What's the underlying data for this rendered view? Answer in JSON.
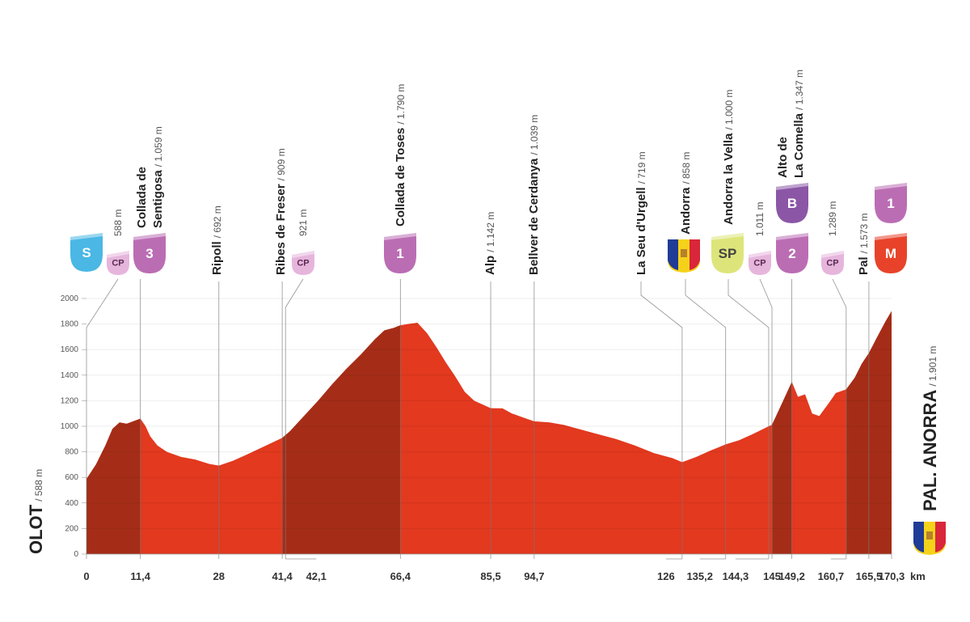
{
  "chart_data": {
    "type": "area",
    "x": [
      0,
      2,
      4,
      5.5,
      7,
      8.5,
      10,
      11.4,
      12.5,
      13.5,
      15,
      17,
      20,
      23,
      26,
      28,
      31,
      34,
      38,
      41.4,
      43,
      46,
      49,
      52,
      55,
      58,
      61,
      63,
      65,
      66.4,
      68,
      70,
      72,
      74,
      76,
      78,
      80,
      82,
      85.5,
      88,
      90,
      93,
      94.7,
      98,
      101,
      105,
      108,
      112,
      116,
      120,
      124,
      126,
      129,
      132,
      135.2,
      138,
      141,
      144.3,
      145,
      147,
      149.2,
      150.5,
      152,
      153.5,
      155,
      157,
      158.5,
      160.7,
      162.5,
      164,
      165.5,
      167,
      169,
      170.3
    ],
    "values": [
      588,
      700,
      850,
      980,
      1030,
      1020,
      1040,
      1059,
      1000,
      920,
      850,
      800,
      760,
      740,
      705,
      692,
      730,
      780,
      850,
      909,
      960,
      1080,
      1200,
      1330,
      1450,
      1560,
      1680,
      1750,
      1770,
      1790,
      1800,
      1810,
      1730,
      1620,
      1500,
      1390,
      1270,
      1200,
      1142,
      1140,
      1100,
      1060,
      1039,
      1030,
      1010,
      970,
      940,
      900,
      850,
      790,
      750,
      719,
      760,
      810,
      858,
      890,
      940,
      1000,
      1011,
      1170,
      1347,
      1230,
      1250,
      1100,
      1080,
      1180,
      1260,
      1289,
      1380,
      1490,
      1573,
      1680,
      1820,
      1901
    ],
    "color": "#e2391f",
    "climb_color": "#a52d17",
    "climbs": [
      {
        "start": 0,
        "end": 11.4
      },
      {
        "start": 41.4,
        "end": 66.4
      },
      {
        "start": 145,
        "end": 149.2
      },
      {
        "start": 160.7,
        "end": 170.3
      }
    ],
    "xlim": [
      0,
      170.3
    ],
    "ylim": [
      0,
      2000
    ],
    "yticks": [
      0,
      200,
      400,
      600,
      800,
      1000,
      1200,
      1400,
      1600,
      1800,
      2000
    ],
    "xticks": [
      0,
      {
        "value": 11.4,
        "label": "11,4"
      },
      28,
      {
        "value": 41.4,
        "label": "41,4"
      },
      {
        "value": 42.1,
        "label": "42,1"
      },
      {
        "value": 66.4,
        "label": "66,4"
      },
      {
        "value": 85.5,
        "label": "85,5"
      },
      {
        "value": 94.7,
        "label": "94,7"
      },
      126,
      {
        "value": 135.2,
        "label": "135,2"
      },
      {
        "value": 144.3,
        "label": "144,3"
      },
      145,
      {
        "value": 149.2,
        "label": "149,2"
      },
      {
        "value": 160.7,
        "label": "160,7"
      },
      {
        "value": 165.5,
        "label": "165,5"
      },
      {
        "value": 170.3,
        "label": "170,3"
      }
    ],
    "x_unit": "km",
    "grid": true,
    "start": {
      "name": "OLOT",
      "alt": "/ 588 m"
    },
    "finish": {
      "name": "PAL. ANORRA",
      "alt": "/ 1.901 m"
    },
    "points": [
      {
        "name": [
          "Collada de",
          "Sentigosa"
        ],
        "alt": "/ 1.059 m",
        "km": 11.4
      },
      {
        "name": [
          "Ripoll"
        ],
        "alt": "/ 692 m",
        "km": 28
      },
      {
        "name": [
          "Ribes de Freser"
        ],
        "alt": "/ 909 m",
        "km": 41.4
      },
      {
        "name": [
          "Collada de Toses"
        ],
        "alt": "/ 1.790 m",
        "km": 66.4
      },
      {
        "name": [
          "Alp"
        ],
        "alt": "/ 1.142 m",
        "km": 85.5
      },
      {
        "name": [
          "Bellver de Cerdanya"
        ],
        "alt": "/ 1.039 m",
        "km": 94.7
      },
      {
        "name": [
          "La Seu d'Urgell"
        ],
        "alt": "/ 719 m",
        "km": 126
      },
      {
        "name": [
          "Andorra"
        ],
        "alt": "/ 858 m",
        "km": 135.2
      },
      {
        "name": [
          "Andorra la Vella"
        ],
        "alt": "/ 1.000 m",
        "km": 144.3
      },
      {
        "name": [
          "Alto de",
          "La Comella"
        ],
        "alt": "/ 1.347 m",
        "km": 149.2
      },
      {
        "name": [
          "Pal"
        ],
        "alt": "/ 1.573 m",
        "km": 165.5
      }
    ],
    "checkpoints": [
      {
        "alt": "588 m",
        "km": 0
      },
      {
        "alt": "921 m",
        "km": 42.1
      },
      {
        "alt": "1.011 m",
        "km": 145
      },
      {
        "alt": "1.289 m",
        "km": 160.7
      }
    ],
    "badges": [
      {
        "text": "S",
        "color": "#4ab7e4"
      },
      {
        "text": "CP",
        "color": "#e6b5dc"
      },
      {
        "text": "3",
        "color": "#bb6db4"
      },
      {
        "text": "CP",
        "color": "#e6b5dc"
      },
      {
        "text": "1",
        "color": "#bb6db4"
      },
      {
        "text": "SP",
        "color": "#dde57a"
      },
      {
        "text": "CP",
        "color": "#e6b5dc"
      },
      {
        "text": "2",
        "color": "#bb6db4"
      },
      {
        "text": "B",
        "color": "#8b56a6"
      },
      {
        "text": "CP",
        "color": "#e6b5dc"
      },
      {
        "text": "1",
        "color": "#bb6db4"
      },
      {
        "text": "M",
        "color": "#e8432a"
      }
    ]
  }
}
